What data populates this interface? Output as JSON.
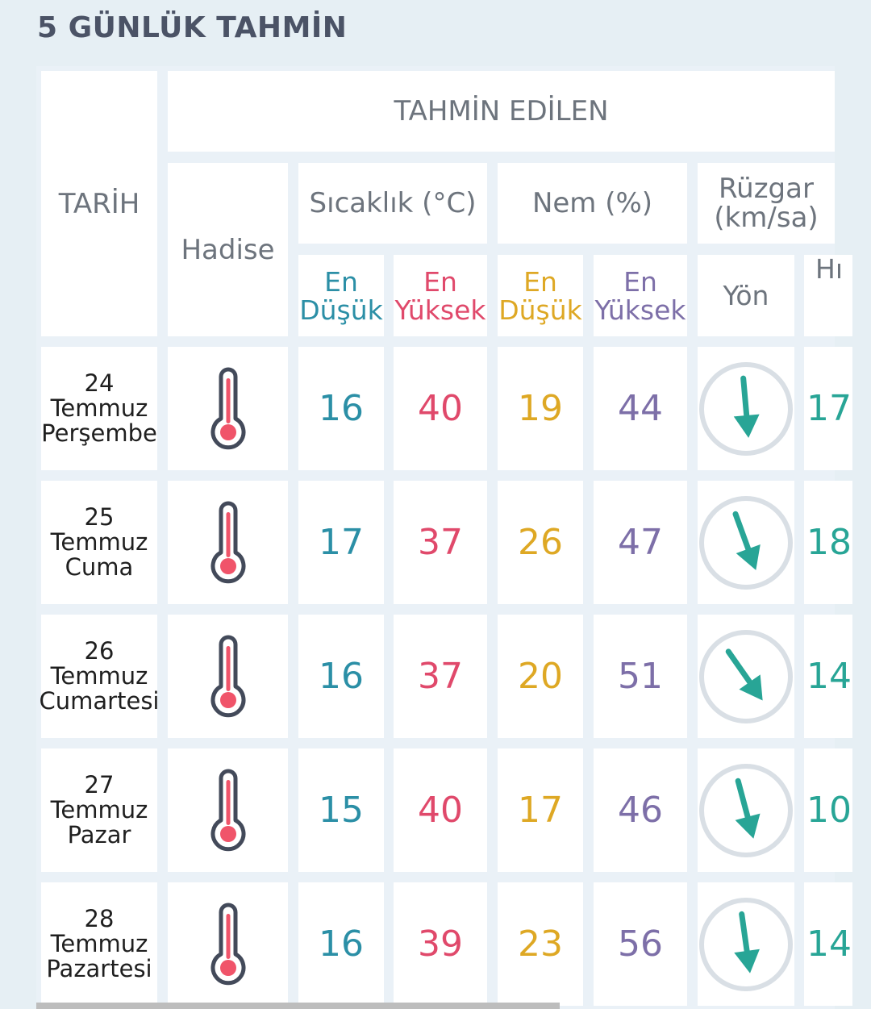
{
  "title": "5 GÜNLÜK TAHMİN",
  "colors": {
    "min_temp": "#2b8fa6",
    "max_temp": "#e0496b",
    "min_hum": "#dea824",
    "max_hum": "#7d6fa8",
    "wind": "#28a596",
    "thermometer_fill": "#f0546a"
  },
  "header": {
    "tarih": "TARİH",
    "tahmin_edilen": "TAHMİN EDİLEN",
    "hadise": "Hadise",
    "sicaklik": "Sıcaklık (°C)",
    "nem": "Nem (%)",
    "ruzgar_line1": "Rüzgar",
    "ruzgar_line2": "(km/sa)",
    "temp_min_line1": "En",
    "temp_min_line2": "Düşük",
    "temp_max_line1": "En",
    "temp_max_line2": "Yüksek",
    "hum_min_line1": "En",
    "hum_min_line2": "Düşük",
    "hum_max_line1": "En",
    "hum_max_line2": "Yüksek",
    "yon": "Yön",
    "hiz_partial": "Hı"
  },
  "rows": [
    {
      "day": "24",
      "month": "Temmuz",
      "weekday": "Perşembe",
      "hadise_icon": "thermometer-icon",
      "temp_min": "16",
      "temp_max": "40",
      "hum_min": "19",
      "hum_max": "44",
      "wind_dir_icon": "wind-direction-arrow-icon",
      "wind_rotation_deg": 175,
      "wind_speed_partial": "17"
    },
    {
      "day": "25",
      "month": "Temmuz",
      "weekday": "Cuma",
      "hadise_icon": "thermometer-icon",
      "temp_min": "17",
      "temp_max": "37",
      "hum_min": "26",
      "hum_max": "47",
      "wind_dir_icon": "wind-direction-arrow-icon",
      "wind_rotation_deg": 160,
      "wind_speed_partial": "18"
    },
    {
      "day": "26",
      "month": "Temmuz",
      "weekday": "Cumartesi",
      "hadise_icon": "thermometer-icon",
      "temp_min": "16",
      "temp_max": "37",
      "hum_min": "20",
      "hum_max": "51",
      "wind_dir_icon": "wind-direction-arrow-icon",
      "wind_rotation_deg": 145,
      "wind_speed_partial": "14"
    },
    {
      "day": "27",
      "month": "Temmuz",
      "weekday": "Pazar",
      "hadise_icon": "thermometer-icon",
      "temp_min": "15",
      "temp_max": "40",
      "hum_min": "17",
      "hum_max": "46",
      "wind_dir_icon": "wind-direction-arrow-icon",
      "wind_rotation_deg": 165,
      "wind_speed_partial": "10"
    },
    {
      "day": "28",
      "month": "Temmuz",
      "weekday": "Pazartesi",
      "hadise_icon": "thermometer-icon",
      "temp_min": "16",
      "temp_max": "39",
      "hum_min": "23",
      "hum_max": "56",
      "wind_dir_icon": "wind-direction-arrow-icon",
      "wind_rotation_deg": 172,
      "wind_speed_partial": "14"
    }
  ]
}
